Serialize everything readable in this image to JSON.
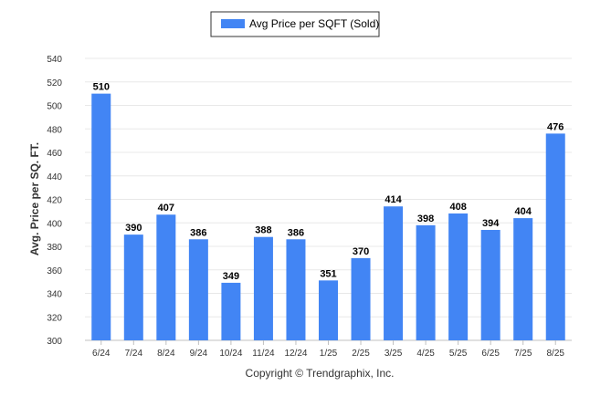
{
  "legend": {
    "label": "Avg Price per SQFT (Sold)"
  },
  "credit": "Copyright © Trendgraphix, Inc.",
  "colors": {
    "bar": "#4285F4",
    "grid": "#E8E8E8",
    "axis": "#C0C0C0"
  },
  "chart_data": {
    "type": "bar",
    "categories": [
      "6/24",
      "7/24",
      "8/24",
      "9/24",
      "10/24",
      "11/24",
      "12/24",
      "1/25",
      "2/25",
      "3/25",
      "4/25",
      "5/25",
      "6/25",
      "7/25",
      "8/25"
    ],
    "series": [
      {
        "name": "Avg Price per SQFT (Sold)",
        "values": [
          510,
          390,
          407,
          386,
          349,
          388,
          386,
          351,
          370,
          414,
          398,
          408,
          394,
          404,
          476
        ]
      }
    ],
    "ylabel": "Avg. Price per SQ. FT.",
    "xlabel": "",
    "ylim": [
      300,
      540
    ],
    "yticks": [
      300,
      320,
      340,
      360,
      380,
      400,
      420,
      440,
      460,
      480,
      500,
      520,
      540
    ],
    "grid": true,
    "legend_position": "top-center",
    "data_labels": true
  }
}
